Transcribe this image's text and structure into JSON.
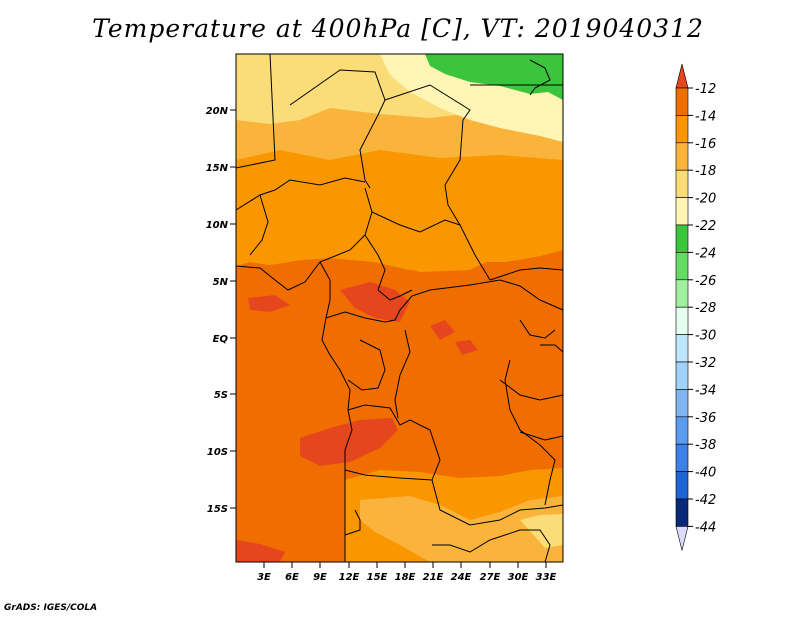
{
  "title": "Temperature at 400hPa [C], VT: 2019040312",
  "credit": "GrADS: IGES/COLA",
  "map": {
    "lat_labels": [
      "20N",
      "15N",
      "10N",
      "5N",
      "EQ",
      "5S",
      "10S",
      "15S"
    ],
    "lon_labels": [
      "3E",
      "6E",
      "9E",
      "12E",
      "15E",
      "18E",
      "21E",
      "24E",
      "27E",
      "30E",
      "33E"
    ]
  },
  "colorbar": {
    "labels": [
      "-12",
      "-14",
      "-16",
      "-18",
      "-20",
      "-22",
      "-24",
      "-26",
      "-28",
      "-30",
      "-32",
      "-34",
      "-36",
      "-38",
      "-40",
      "-42",
      "-44"
    ],
    "colors": [
      "#e6461e",
      "#f06e00",
      "#fa9600",
      "#fab43c",
      "#fadc78",
      "#fff5b4",
      "#3cc43c",
      "#64dc64",
      "#a0f0a0",
      "#e6fff0",
      "#bee6ff",
      "#a0d2fa",
      "#82b4f0",
      "#5a9bf0",
      "#3c82e6",
      "#1e64d2",
      "#0a2878",
      "#dcdcfa"
    ]
  },
  "field_colors": {
    "c12": "#e6461e",
    "c14": "#f06e00",
    "c16": "#fa9600",
    "c18": "#fab43c",
    "c20": "#fadc78",
    "c22": "#fff5b4",
    "c24": "#3cc43c"
  }
}
